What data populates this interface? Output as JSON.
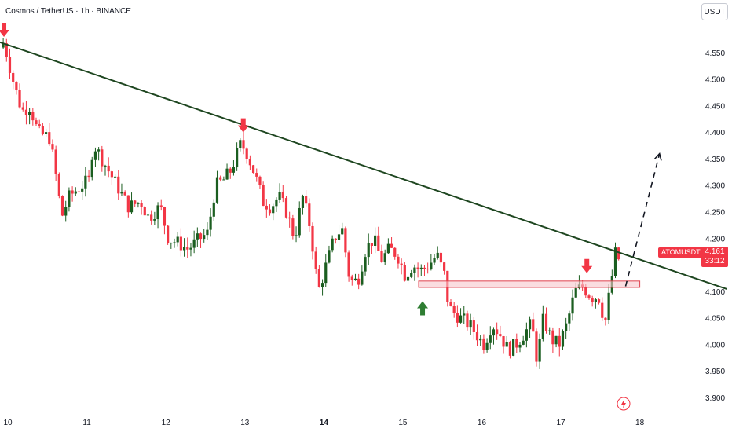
{
  "header": {
    "title": "Cosmos / TetherUS · 1h · BINANCE",
    "currency_button": "USDT"
  },
  "badges": {
    "symbol": "ATOMUSDT",
    "price": "4.161",
    "countdown": "33:12"
  },
  "colors": {
    "up": "#1b5e20",
    "down": "#f23645",
    "trendline": "#1e4620",
    "zone_fill": "#f7c6cb",
    "zone_stroke": "#e0434f",
    "arrow_down": "#f23645",
    "arrow_up": "#2e7d32",
    "axis_text": "#131722"
  },
  "icons": {
    "lightning": "lightning-icon",
    "arrow_down": "arrow-down-icon",
    "arrow_up": "arrow-up-icon"
  },
  "chart_data": {
    "type": "candlestick",
    "x_unit": "day",
    "x_ticks": [
      {
        "label": "10",
        "day": 10
      },
      {
        "label": "11",
        "day": 11
      },
      {
        "label": "12",
        "day": 12
      },
      {
        "label": "13",
        "day": 13
      },
      {
        "label": "14",
        "day": 14
      },
      {
        "label": "15",
        "day": 15
      },
      {
        "label": "16",
        "day": 16
      },
      {
        "label": "17",
        "day": 17
      },
      {
        "label": "18",
        "day": 18
      }
    ],
    "y_ticks": [
      "4.550",
      "4.500",
      "4.450",
      "4.400",
      "4.350",
      "4.300",
      "4.250",
      "4.200",
      "4.100",
      "4.050",
      "4.000",
      "3.950",
      "3.900"
    ],
    "ylim": [
      3.88,
      4.62
    ],
    "xlim": [
      9.9,
      18.7
    ],
    "close_anchors": [
      [
        9.92,
        4.56
      ],
      [
        9.97,
        4.57
      ],
      [
        10.1,
        4.49
      ],
      [
        10.2,
        4.44
      ],
      [
        10.3,
        4.45
      ],
      [
        10.4,
        4.4
      ],
      [
        10.55,
        4.39
      ],
      [
        10.65,
        4.3
      ],
      [
        10.7,
        4.24
      ],
      [
        10.8,
        4.28
      ],
      [
        10.95,
        4.3
      ],
      [
        11.05,
        4.31
      ],
      [
        11.1,
        4.38
      ],
      [
        11.25,
        4.34
      ],
      [
        11.4,
        4.3
      ],
      [
        11.55,
        4.26
      ],
      [
        11.7,
        4.27
      ],
      [
        11.8,
        4.24
      ],
      [
        11.95,
        4.26
      ],
      [
        12.05,
        4.2
      ],
      [
        12.2,
        4.19
      ],
      [
        12.3,
        4.18
      ],
      [
        12.45,
        4.2
      ],
      [
        12.55,
        4.21
      ],
      [
        12.65,
        4.3
      ],
      [
        12.75,
        4.31
      ],
      [
        12.85,
        4.33
      ],
      [
        12.97,
        4.38
      ],
      [
        13.05,
        4.36
      ],
      [
        13.15,
        4.32
      ],
      [
        13.25,
        4.27
      ],
      [
        13.35,
        4.26
      ],
      [
        13.45,
        4.28
      ],
      [
        13.55,
        4.25
      ],
      [
        13.65,
        4.2
      ],
      [
        13.75,
        4.28
      ],
      [
        13.85,
        4.22
      ],
      [
        13.95,
        4.1
      ],
      [
        14.05,
        4.15
      ],
      [
        14.15,
        4.2
      ],
      [
        14.25,
        4.22
      ],
      [
        14.35,
        4.12
      ],
      [
        14.45,
        4.12
      ],
      [
        14.55,
        4.18
      ],
      [
        14.65,
        4.2
      ],
      [
        14.75,
        4.16
      ],
      [
        14.85,
        4.18
      ],
      [
        14.95,
        4.17
      ],
      [
        15.05,
        4.13
      ],
      [
        15.15,
        4.15
      ],
      [
        15.25,
        4.14
      ],
      [
        15.35,
        4.15
      ],
      [
        15.45,
        4.17
      ],
      [
        15.55,
        4.13
      ],
      [
        15.6,
        4.07
      ],
      [
        15.75,
        4.05
      ],
      [
        15.85,
        4.04
      ],
      [
        15.95,
        4.02
      ],
      [
        16.05,
        4.0
      ],
      [
        16.15,
        4.04
      ],
      [
        16.25,
        4.02
      ],
      [
        16.35,
        3.99
      ],
      [
        16.45,
        4.0
      ],
      [
        16.55,
        4.02
      ],
      [
        16.65,
        4.04
      ],
      [
        16.72,
        3.97
      ],
      [
        16.8,
        4.05
      ],
      [
        16.9,
        4.01
      ],
      [
        17.0,
        4.0
      ],
      [
        17.1,
        4.04
      ],
      [
        17.2,
        4.1
      ],
      [
        17.3,
        4.11
      ],
      [
        17.4,
        4.09
      ],
      [
        17.5,
        4.09
      ],
      [
        17.58,
        4.04
      ],
      [
        17.65,
        4.11
      ],
      [
        17.72,
        4.18
      ],
      [
        17.78,
        4.161
      ]
    ],
    "annotations": {
      "resistance_line": {
        "start": [
          9.9,
          4.57
        ],
        "end": [
          19.1,
          4.105
        ]
      },
      "support_zone": {
        "x1": 15.2,
        "x2": 18.0,
        "y_low": 4.108,
        "y_high": 4.12
      },
      "projection": [
        [
          17.82,
          4.11
        ],
        [
          18.25,
          4.36
        ]
      ],
      "down_arrows": [
        [
          9.95,
          4.58
        ],
        [
          12.98,
          4.4
        ],
        [
          17.33,
          4.135
        ]
      ],
      "up_arrows": [
        [
          15.25,
          4.082
        ]
      ]
    }
  }
}
